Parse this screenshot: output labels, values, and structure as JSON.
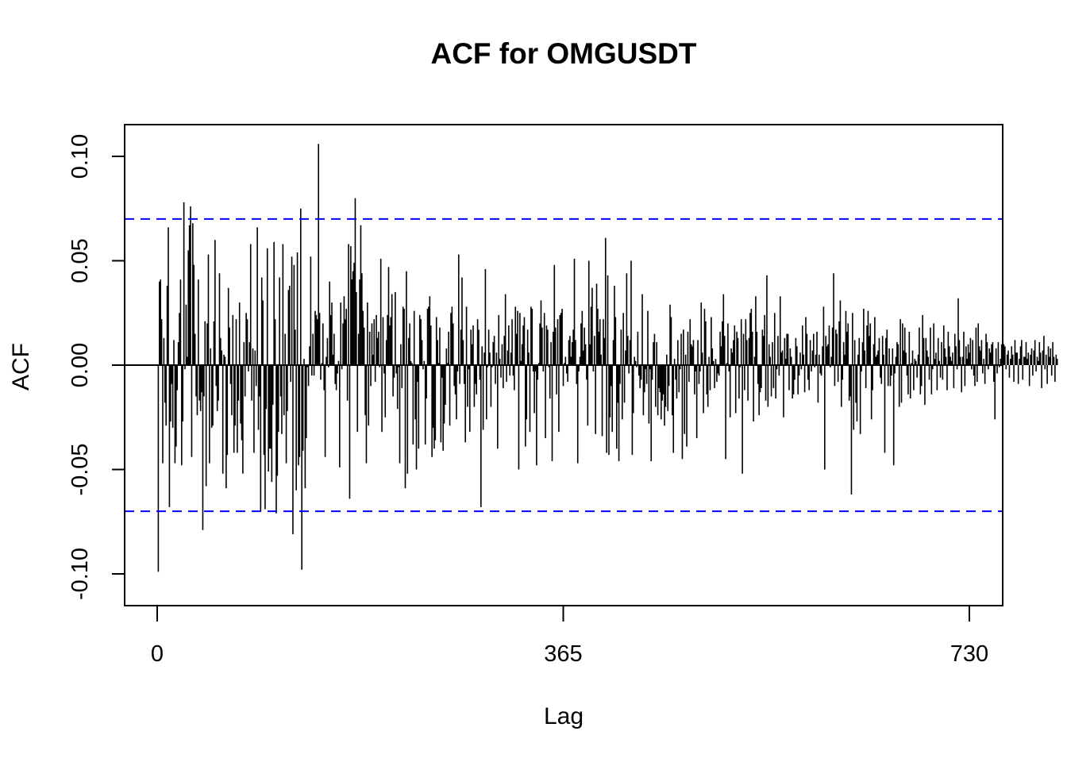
{
  "chart_data": {
    "type": "bar",
    "title": "ACF for OMGUSDT",
    "xlabel": "Lag",
    "ylabel": "ACF",
    "xlim": [
      0,
      730
    ],
    "ylim": [
      -0.115,
      0.115
    ],
    "x_ticks": [
      0,
      365,
      730
    ],
    "x_tick_labels": [
      "0",
      "365",
      "730"
    ],
    "y_ticks": [
      -0.1,
      -0.05,
      0.0,
      0.05,
      0.1
    ],
    "y_tick_labels": [
      "-0.10",
      "-0.05",
      "0.00",
      "0.05",
      "0.10"
    ],
    "confidence_bounds": [
      0.07,
      -0.07
    ],
    "grid": false,
    "colors": {
      "bars": "#000000",
      "zero_line": "#000000",
      "confidence": "#0000ff",
      "frame": "#000000"
    },
    "series": [
      {
        "values": [
          -0.099,
          0.04,
          0.041,
          0.022,
          -0.047,
          0.013,
          -0.018,
          -0.029,
          0.038,
          0.066,
          -0.068,
          -0.027,
          -0.009,
          -0.03,
          0.012,
          -0.047,
          -0.039,
          -0.012,
          0.011,
          0.025,
          0.041,
          -0.048,
          -0.027,
          0.078,
          -0.002,
          0.029,
          0.004,
          0.055,
          0.067,
          0.076,
          -0.044,
          0.068,
          0.048,
          0.015,
          -0.015,
          -0.024,
          0.041,
          -0.017,
          -0.022,
          -0.013,
          -0.079,
          -0.015,
          0.021,
          -0.058,
          0.02,
          0.053,
          -0.047,
          0.008,
          -0.03,
          -0.029,
          0.021,
          0.06,
          -0.01,
          -0.022,
          -0.017,
          0.044,
          0.013,
          0.007,
          -0.052,
          0.005,
          0.004,
          -0.059,
          -0.043,
          0.037,
          0.018,
          -0.009,
          -0.024,
          0.024,
          -0.042,
          -0.029,
          0.022,
          -0.042,
          -0.017,
          0.03,
          -0.028,
          -0.036,
          -0.052,
          0.011,
          -0.015,
          0.025,
          0.022,
          -0.003,
          0.011,
          0.058,
          -0.017,
          0.008,
          -0.042,
          0.007,
          -0.01,
          0.066,
          -0.031,
          -0.015,
          -0.07,
          0.042,
          0.031,
          -0.043,
          -0.069,
          -0.021,
          0.056,
          -0.051,
          -0.04,
          -0.04,
          -0.056,
          -0.019,
          0.059,
          0.022,
          -0.071,
          -0.053,
          -0.032,
          0.042,
          -0.015,
          -0.033,
          0.058,
          -0.024,
          0.015,
          -0.047,
          -0.022,
          0.036,
          0.038,
          -0.008,
          0.052,
          -0.081,
          0.048,
          0.017,
          -0.06,
          0.054,
          -0.048,
          -0.044,
          0.075,
          -0.098,
          -0.041,
          0.003,
          -0.059,
          -0.035,
          -0.001,
          -0.01,
          0.009,
          0.052,
          -0.005,
          0.015,
          -0.005,
          0.026,
          0.024,
          0.022,
          0.106,
          0.025,
          -0.007,
          0.001,
          0.02,
          -0.012,
          -0.044,
          0.004,
          0.013,
          -0.001,
          0.04,
          0.024,
          0.03,
          0.005,
          0.015,
          -0.009,
          -0.012,
          -0.004,
          0.002,
          -0.049,
          0.03,
          -0.002,
          0.02,
          0.033,
          0.022,
          0.027,
          -0.017,
          0.058,
          -0.064,
          0.057,
          0.041,
          0.045,
          0.049,
          0.08,
          0.035,
          -0.032,
          0.015,
          0.041,
          0.067,
          0.044,
          0.026,
          0.018,
          -0.024,
          -0.047,
          0.03,
          -0.029,
          0.016,
          -0.01,
          0.02,
          0.005,
          0.022,
          -0.008,
          0.024,
          0.013,
          0.016,
          -0.001,
          0.051,
          -0.032,
          0.023,
          -0.004,
          -0.025,
          0.012,
          0.024,
          0.047,
          0.019,
          0.023,
          0.034,
          -0.015,
          -0.006,
          0.035,
          -0.004,
          -0.021,
          -0.001,
          -0.047,
          0.01,
          -0.011,
          0.028,
          0.027,
          -0.059,
          0.045,
          -0.052,
          0.013,
          0.02,
          0.002,
          0.001,
          -0.038,
          0.026,
          -0.026,
          -0.05,
          -0.008,
          -0.04,
          0.024,
          0.022,
          0.012,
          -0.002,
          0.002,
          -0.038,
          -0.016,
          0.027,
          0.028,
          0.033,
          0.019,
          -0.044,
          -0.03,
          -0.04,
          -0.036,
          0.023,
          0.012,
          0.001,
          0.018,
          -0.037,
          -0.006,
          -0.041,
          -0.028,
          -0.019,
          0.008,
          0.001,
          0.016,
          -0.029,
          0.025,
          0.028,
          0.02,
          -0.01,
          -0.014,
          -0.026,
          -0.003,
          0.053,
          -0.009,
          0.017,
          0.042,
          0.012,
          -0.009,
          -0.037,
          0.028,
          -0.02,
          -0.002,
          -0.032,
          0.017,
          0.01,
          0.019,
          -0.02,
          -0.009,
          -0.014,
          0.022,
          0.017,
          -0.007,
          -0.068,
          0.009,
          -0.031,
          0.006,
          0.046,
          -0.026,
          -0.001,
          0.017,
          0.006,
          -0.02,
          -0.001,
          0.011,
          0.014,
          -0.009,
          0.006,
          -0.04,
          0.024,
          0.003,
          -0.006,
          0.01,
          -0.011,
          0.014,
          0.034,
          -0.008,
          0.007,
          0.019,
          -0.005,
          0.006,
          0.022,
          -0.005,
          -0.012,
          0.028,
          0.015,
          0.026,
          -0.05,
          0.025,
          0.002,
          0.01,
          0.019,
          0.023,
          -0.039,
          -0.026,
          0.017,
          0.006,
          -0.032,
          0.028,
          0.027,
          -0.003,
          -0.023,
          -0.003,
          -0.048,
          -0.007,
          0.001,
          0.02,
          0.031,
          0.018,
          -0.003,
          0.025,
          -0.035,
          0.019,
          0.017,
          -0.001,
          -0.016,
          0.011,
          -0.046,
          0.016,
          0.048,
          0.018,
          -0.014,
          0.022,
          -0.032,
          0.024,
          0.025,
          0.027,
          -0.01,
          0.001,
          0.004,
          -0.004,
          -0.008,
          0.012,
          0.014,
          0.004,
          0.011,
          0.017,
          0.051,
          0.012,
          -0.009,
          -0.047,
          -0.003,
          0.004,
          0.02,
          0.026,
          0.007,
          0.018,
          0.01,
          -0.007,
          -0.029,
          0.05,
          0.01,
          0.028,
          0.037,
          -0.003,
          0.014,
          -0.033,
          0.039,
          0.027,
          0.016,
          0.022,
          0.005,
          -0.034,
          0.022,
          0.013,
          0.061,
          -0.042,
          0.043,
          -0.043,
          -0.025,
          -0.01,
          -0.032,
          0.012,
          0.038,
          0.023,
          -0.04,
          -0.018,
          -0.046,
          -0.009,
          0.017,
          -0.026,
          0.025,
          -0.018,
          0.007,
          0.044,
          0.014,
          -0.004,
          0.012,
          0.05,
          -0.043,
          -0.023,
          0.004,
          0.002,
          -0.001,
          0.016,
          -0.005,
          -0.011,
          -0.007,
          0.034,
          -0.024,
          -0.013,
          -0.002,
          -0.009,
          0.026,
          -0.028,
          -0.002,
          -0.046,
          -0.007,
          0.011,
          0.015,
          -0.02,
          0.011,
          -0.024,
          -0.011,
          -0.013,
          -0.026,
          -0.017,
          -0.014,
          -0.029,
          -0.02,
          0.005,
          -0.022,
          -0.01,
          0.029,
          0.023,
          -0.024,
          -0.042,
          0.003,
          -0.007,
          -0.016,
          0.012,
          -0.013,
          -0.002,
          0.015,
          -0.045,
          0.017,
          -0.033,
          0.005,
          -0.039,
          0.016,
          -0.008,
          0.022,
          0.01,
          0.009,
          0.012,
          -0.014,
          -0.003,
          -0.035,
          0.012,
          -0.009,
          -0.003,
          0.03,
          0.006,
          -0.023,
          0.027,
          0.021,
          -0.014,
          -0.02,
          0.004,
          -0.012,
          0.023,
          0.008,
          0.002,
          -0.011,
          0.003,
          -0.008,
          -0.004,
          -0.005,
          0.016,
          0.009,
          0.021,
          0.034,
          0.014,
          -0.045,
          0.001,
          0.02,
          -0.003,
          -0.025,
          0.008,
          0.006,
          0.012,
          0.019,
          -0.023,
          0.016,
          0.013,
          -0.016,
          -0.001,
          0.022,
          -0.052,
          0.015,
          -0.012,
          0.022,
          0.012,
          -0.017,
          0.013,
          0.025,
          0.027,
          0.016,
          -0.027,
          0.004,
          0.033,
          0.016,
          -0.009,
          -0.024,
          -0.013,
          -0.011,
          0.017,
          0.014,
          0.024,
          -0.017,
          0.043,
          -0.02,
          0.01,
          0.004,
          -0.015,
          0.011,
          -0.011,
          0.025,
          -0.016,
          -0.002,
          0.014,
          -0.005,
          0.033,
          0.006,
          0.007,
          -0.025,
          0.013,
          0.003,
          0.015,
          0.015,
          -0.012,
          0.008,
          0.004,
          -0.016,
          -0.014,
          -0.007,
          0.013,
          0.009,
          -0.014,
          -0.005,
          0.006,
          -0.002,
          0.019,
          0.005,
          -0.013,
          0.023,
          0.015,
          -0.007,
          -0.012,
          0.012,
          -0.003,
          0.007,
          0.015,
          -0.001,
          0.005,
          0.016,
          -0.018,
          0.005,
          -0.004,
          -0.005,
          0.009,
          0.028,
          -0.05,
          0.014,
          0.009,
          0.01,
          0.019,
          -0.001,
          0.004,
          0.018,
          0.044,
          -0.01,
          0.017,
          0.015,
          -0.008,
          0.021,
          0.031,
          -0.02,
          -0.007,
          0.011,
          0.005,
          0.026,
          0.016,
          0.02,
          -0.017,
          -0.015,
          -0.062,
          0.025,
          -0.031,
          0.012,
          -0.018,
          -0.027,
          0.005,
          0.013,
          -0.033,
          -0.003,
          0.011,
          0.027,
          0.007,
          -0.011,
          0.019,
          0.026,
          0.014,
          0.02,
          -0.026,
          -0.012,
          0.01,
          0.023,
          0.004,
          0.005,
          0.007,
          0.013,
          -0.006,
          -0.009,
          0.014,
          0.005,
          -0.042,
          0.013,
          0.017,
          -0.01,
          0.008,
          -0.01,
          -0.005,
          0.008,
          -0.048,
          -0.004,
          0.004,
          0.011,
          0.01,
          -0.02,
          0.022,
          -0.018,
          0.02,
          0.007,
          0.018,
          0.006,
          -0.005,
          -0.014,
          0.016,
          -0.016,
          0.001,
          0.007,
          -0.012,
          0.003,
          0.002,
          -0.006,
          0.005,
          0.018,
          -0.014,
          -0.01,
          0.024,
          0.013,
          -0.019,
          0.013,
          0.007,
          0.004,
          -0.007,
          0.018,
          -0.014,
          -0.002,
          0.02,
          0.003,
          0.006,
          -0.012,
          0.013,
          0.002,
          -0.006,
          0.011,
          -0.007,
          0.019,
          0.008,
          0.004,
          -0.012,
          0.016,
          0.009,
          0.004,
          0.002,
          0.006,
          -0.011,
          0.015,
          0.009,
          -0.002,
          0.032,
          0.012,
          0.004,
          -0.013,
          0.004,
          0.016,
          -0.01,
          0.009,
          0.003,
          0.01,
          0.006,
          0.013,
          -0.002,
          0.012,
          -0.005,
          -0.01,
          0.018,
          -0.008,
          0.02,
          0.009,
          0.007,
          0.012,
          -0.004,
          0.003,
          -0.009,
          0.015,
          0.011,
          -0.002,
          0.008,
          0.006,
          0.01,
          0.011,
          -0.008,
          -0.026,
          0.008,
          -0.004,
          0.011,
          -0.001,
          0.003,
          0.01,
          -0.006,
          0.01,
          0.009,
          -0.002,
          0.005,
          0.007,
          -0.006,
          0.003,
          0.009,
          0.005,
          -0.008,
          0.012,
          0.006,
          0.006,
          -0.009,
          0.003,
          0.009,
          0.012,
          -0.007,
          0.004,
          0.004,
          0.011,
          0.003,
          0.006,
          -0.01,
          0.005,
          0.008,
          -0.005,
          0.007,
          0.012,
          -0.003,
          0.004,
          0.002,
          0.011,
          0.006,
          -0.011,
          0.007,
          0.014,
          -0.002,
          0.005,
          -0.009,
          0.009,
          0.004,
          0.008,
          -0.005,
          0.011,
          0.004,
          -0.008,
          0.005,
          0.003
        ]
      }
    ]
  }
}
